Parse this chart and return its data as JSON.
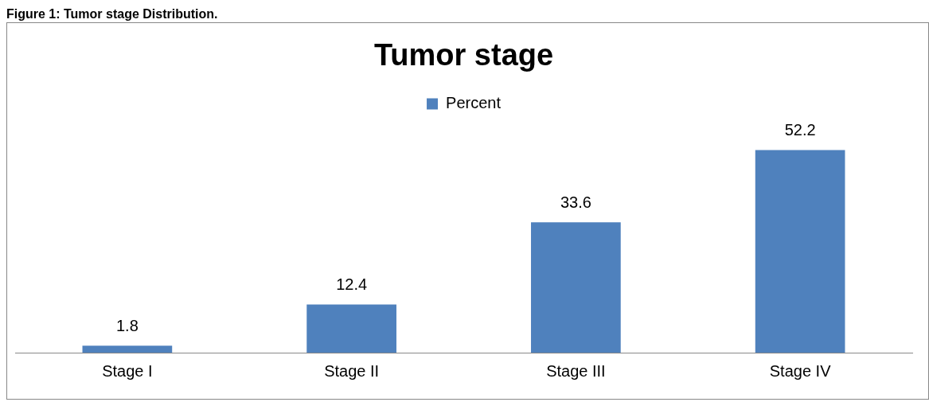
{
  "chart_data": {
    "type": "bar",
    "title": "Tumor stage",
    "annotations": [
      "Figure 1: Tumor stage Distribution."
    ],
    "categories": [
      "Stage I",
      "Stage II",
      "Stage III",
      "Stage IV"
    ],
    "series": [
      {
        "name": "Percent",
        "color": "#4f81bd",
        "values": [
          1.8,
          12.4,
          33.6,
          52.2
        ]
      }
    ],
    "data_labels": true,
    "legend": "top",
    "grid": false
  }
}
